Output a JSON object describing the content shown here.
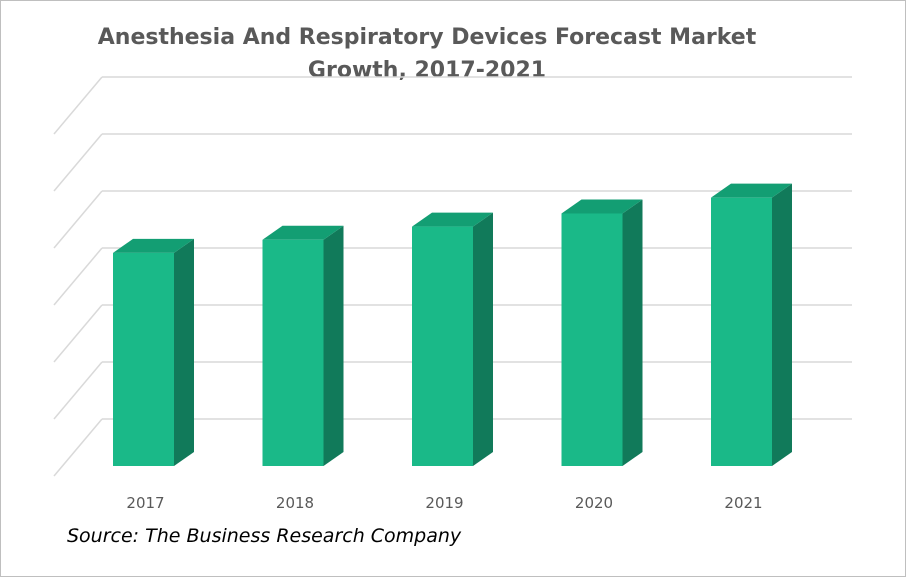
{
  "chart_data": {
    "type": "bar",
    "title_lines": [
      "Anesthesia And Respiratory Devices Forecast Market",
      "Growth, 2017-2021"
    ],
    "categories": [
      "2017",
      "2018",
      "2019",
      "2020",
      "2021"
    ],
    "values": [
      4.05,
      4.3,
      4.55,
      4.8,
      5.1
    ],
    "ylim": [
      0,
      6.5
    ],
    "grid": true,
    "gridline_count": 7,
    "y_tick_labels": false,
    "bar_style": "3d-column",
    "colors": {
      "front": "#1ab988",
      "side": "#117a5a",
      "top": "#139e73",
      "grid": "#d9d9d9",
      "axis_text": "#595959"
    }
  },
  "source": "Source: The Business Research Company"
}
